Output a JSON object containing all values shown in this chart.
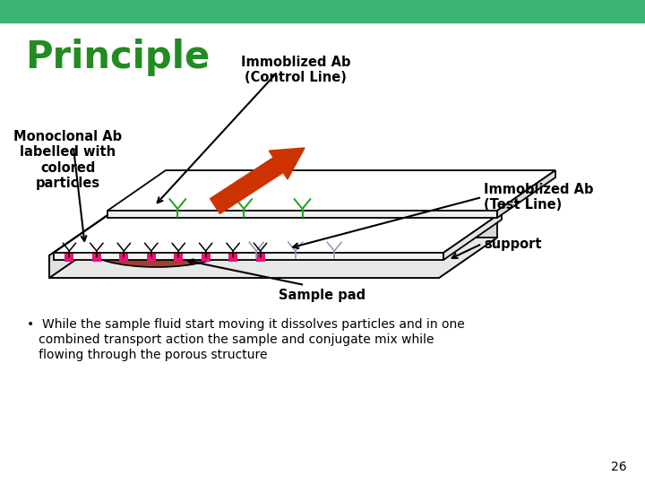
{
  "title": "Principle",
  "title_color": "#228B22",
  "background_color": "#ffffff",
  "header_bar_color": "#3CB371",
  "label_immob_control": "Immoblized Ab\n(Control Line)",
  "label_monoclonal": "Monoclonal Ab\nlabelled with\ncolored\nparticles",
  "label_immob_test": "Immoblized Ab\n(Test Line)",
  "label_support": "support",
  "label_sample_pad": "Sample pad",
  "page_number": "26",
  "green_color": "#22AA22",
  "light_blue_color": "#9999BB",
  "red_arrow_color": "#CC3300",
  "magenta_square_color": "#EE1177",
  "brown_ellipse_color": "#A04030",
  "bullet_line1": "•  While the sample fluid start moving it dissolves particles and in one",
  "bullet_line2": "   combined transport action the sample and conjugate mix while",
  "bullet_line3": "   flowing through the porous structure"
}
